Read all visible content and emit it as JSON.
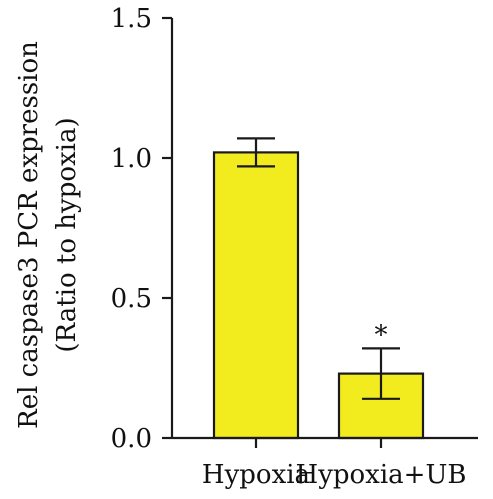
{
  "chart_data": {
    "type": "bar",
    "title": "",
    "xlabel": "",
    "ylabel_lines": [
      "Rel caspase3 PCR expression",
      "(Ratio to hypoxia)"
    ],
    "categories": [
      "Hypoxia",
      "Hypoxia+UB"
    ],
    "values": [
      1.02,
      0.23
    ],
    "errors": [
      0.05,
      0.09
    ],
    "annotations": [
      "",
      "*"
    ],
    "ylim": [
      0,
      1.5
    ],
    "yticks": [
      0.0,
      0.5,
      1.0,
      1.5
    ],
    "ytick_labels": [
      "0.0",
      "0.5",
      "1.0",
      "1.5"
    ],
    "grid": false,
    "bar_color": "#f2ec1f",
    "line_color": "#1a1a1a"
  }
}
